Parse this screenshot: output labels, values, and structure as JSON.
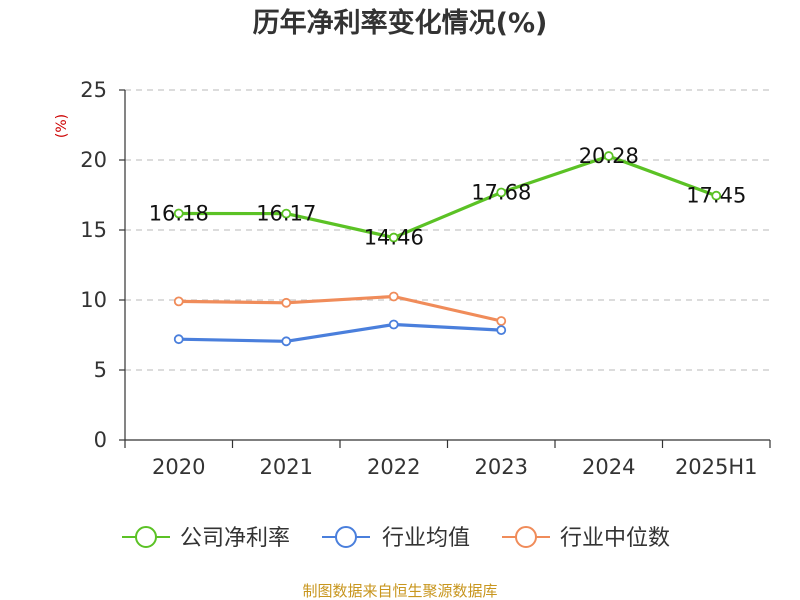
{
  "chart_data": {
    "type": "line",
    "title": "历年净利率变化情况(%)",
    "ylabel": "(%)",
    "categories": [
      "2020",
      "2021",
      "2022",
      "2023",
      "2024",
      "2025H1"
    ],
    "ylim": [
      0,
      25
    ],
    "yticks": [
      "0",
      "5",
      "10",
      "15",
      "20",
      "25"
    ],
    "grid": true,
    "legend_position": "bottom",
    "series": [
      {
        "name": "公司净利率",
        "color": "#5bc225",
        "values": [
          16.18,
          16.17,
          14.46,
          17.68,
          20.28,
          17.45
        ],
        "labels": [
          "16.18",
          "16.17",
          "14.46",
          "17.68",
          "20.28",
          "17.45"
        ]
      },
      {
        "name": "行业均值",
        "color": "#4a7fdc",
        "values": [
          7.2,
          7.05,
          8.25,
          7.85,
          null,
          null
        ]
      },
      {
        "name": "行业中位数",
        "color": "#f08c5a",
        "values": [
          9.9,
          9.8,
          10.25,
          8.5,
          null,
          null
        ]
      }
    ]
  },
  "source": "制图数据来自恒生聚源数据库"
}
